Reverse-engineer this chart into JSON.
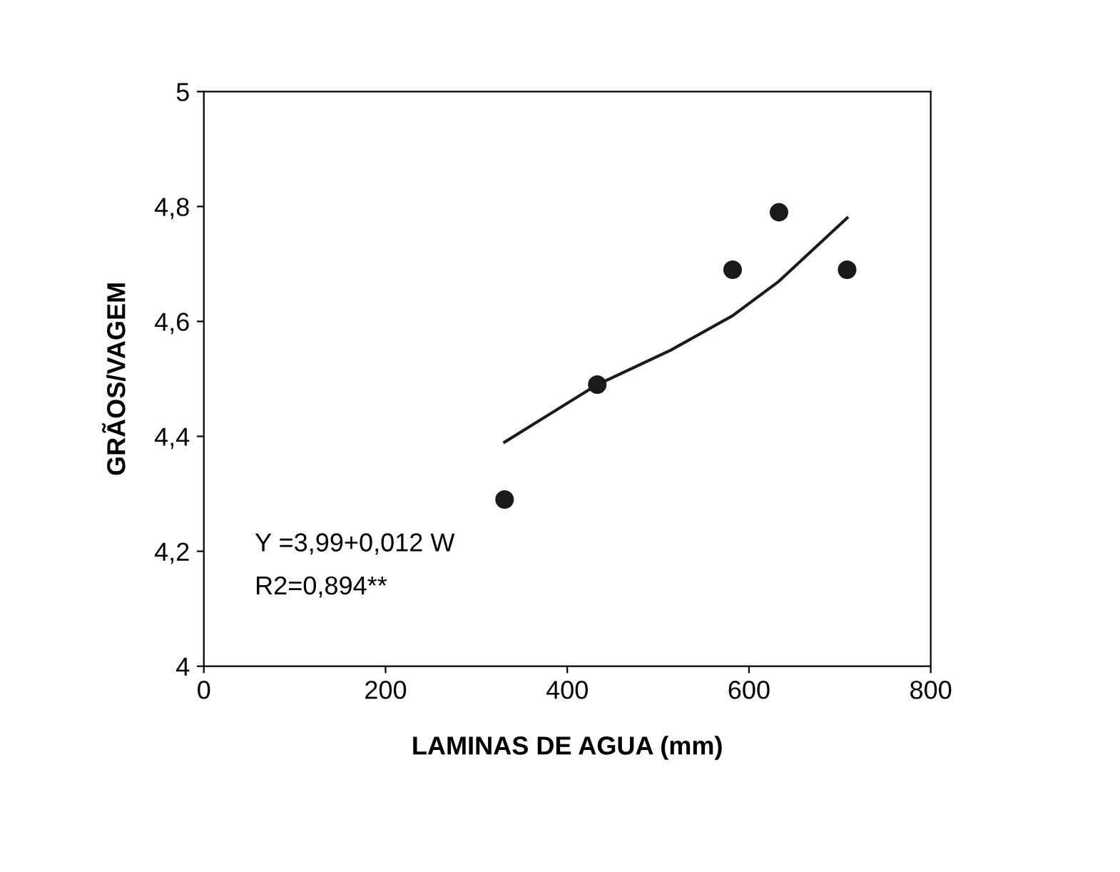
{
  "chart_data": {
    "type": "scatter",
    "xlabel": "LAMINAS DE AGUA (mm)",
    "ylabel": "GRÃOS/VAGEM",
    "xlim": [
      0,
      800
    ],
    "xticks": [
      0,
      200,
      400,
      600,
      800
    ],
    "ylim": [
      4,
      5
    ],
    "yticks": [
      {
        "value": 4,
        "label": "4"
      },
      {
        "value": 4.2,
        "label": "4,2"
      },
      {
        "value": 4.4,
        "label": "4,4"
      },
      {
        "value": 4.6,
        "label": "4,6"
      },
      {
        "value": 4.8,
        "label": "4,8"
      },
      {
        "value": 5,
        "label": "5"
      }
    ],
    "grid": false,
    "marker": "circle",
    "series": [
      {
        "color": "#1a1a1a",
        "x": [
          331,
          433,
          582,
          633,
          708
        ],
        "values": [
          4.29,
          4.49,
          4.69,
          4.79,
          4.69
        ]
      },
      {
        "type": "line",
        "color": "#1a1a1a",
        "marker": "none",
        "line_style": "solid",
        "x": [
          331,
          433,
          514,
          582,
          633,
          708
        ],
        "values": [
          4.39,
          4.49,
          4.55,
          4.61,
          4.67,
          4.78
        ]
      }
    ],
    "annotations": [
      "Y =3,99+0,012 W",
      "R2=0,894**"
    ]
  }
}
